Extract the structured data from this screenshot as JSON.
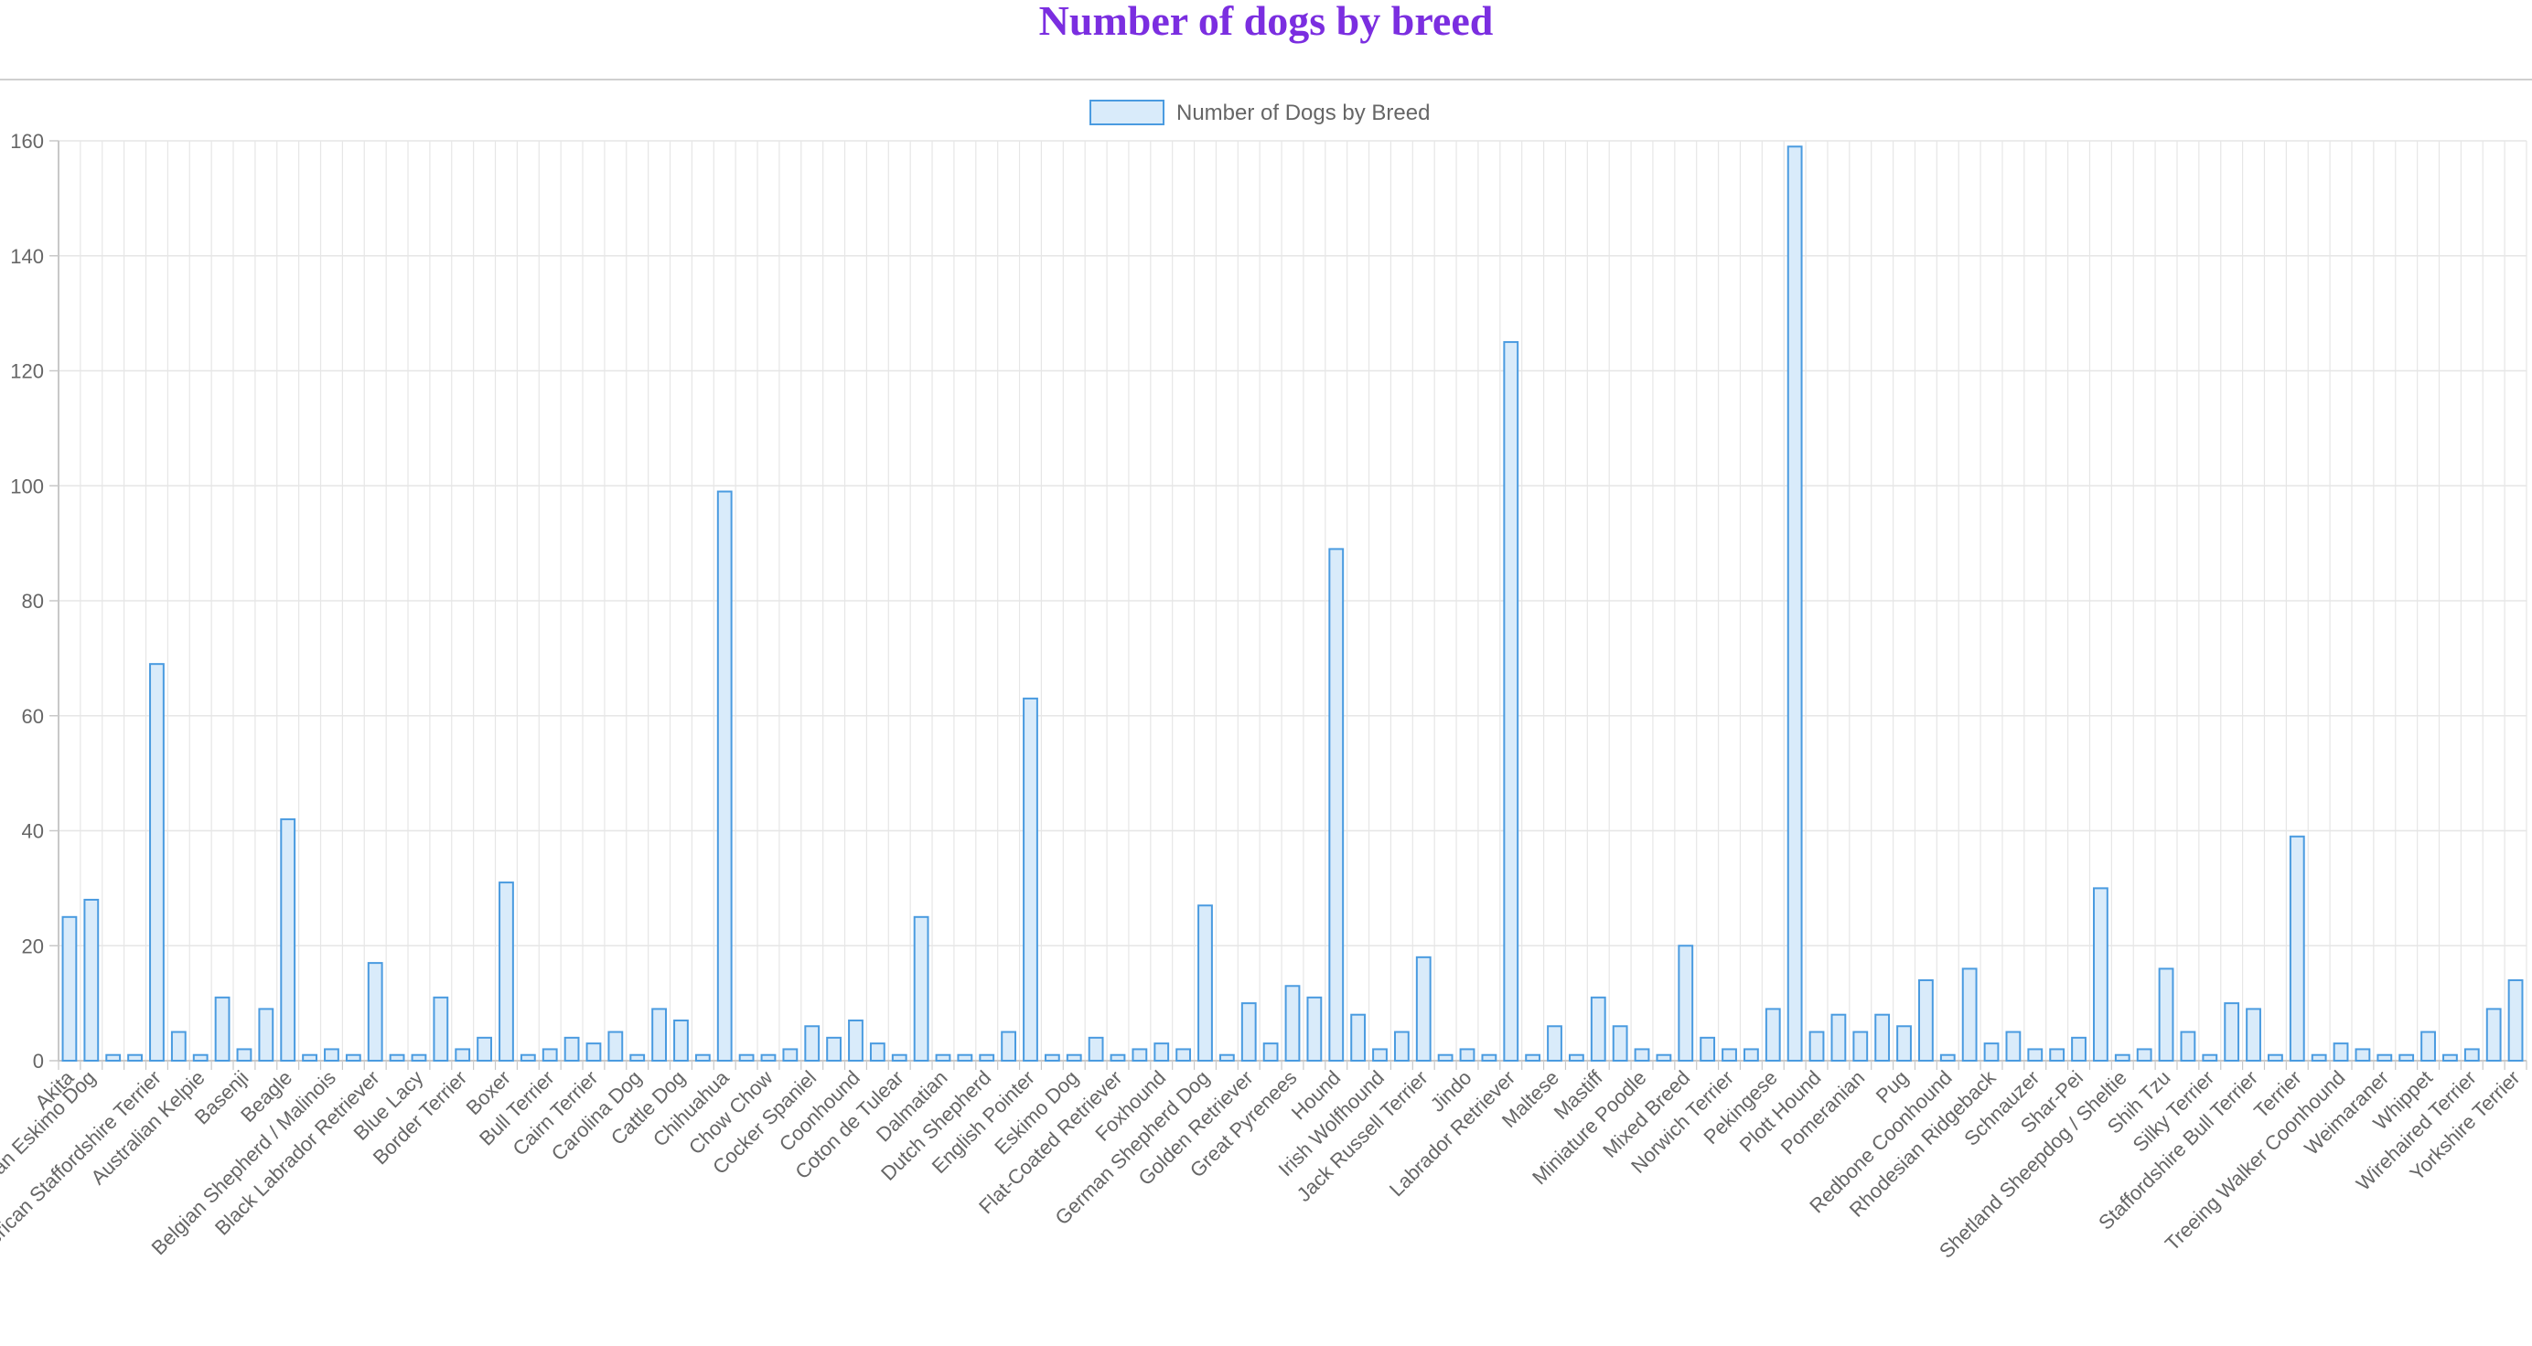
{
  "page": {
    "title": "Number of dogs by breed"
  },
  "chart_data": {
    "type": "bar",
    "title": "Number of dogs by breed",
    "xlabel": "",
    "ylabel": "",
    "ylim": [
      0,
      160
    ],
    "yticks": [
      0,
      20,
      40,
      60,
      80,
      100,
      120,
      140,
      160
    ],
    "grid": true,
    "legend_position": "top-center",
    "colors": {
      "title": "#7b2ee0",
      "bar_fill": "#d9ebfa",
      "bar_stroke": "#4a9be0",
      "grid": "#e6e6e6",
      "axis": "#c8c8c8",
      "text": "#666666"
    },
    "categories": [
      "Akita",
      "American Eskimo Dog",
      "",
      "",
      "American Staffordshire Terrier",
      "",
      "Australian Kelpie",
      "",
      "Basenji",
      "",
      "Beagle",
      "",
      "Belgian Shepherd / Malinois",
      "",
      "Black Labrador Retriever",
      "",
      "Blue Lacy",
      "",
      "Border Terrier",
      "",
      "Boxer",
      "",
      "Bull Terrier",
      "",
      "Cairn Terrier",
      "",
      "Carolina Dog",
      "",
      "Cattle Dog",
      "",
      "Chihuahua",
      "",
      "Chow Chow",
      "",
      "Cocker Spaniel",
      "",
      "Coonhound",
      "",
      "Coton de Tulear",
      "",
      "Dalmatian",
      "",
      "Dutch Shepherd",
      "",
      "English Pointer",
      "",
      "Eskimo Dog",
      "",
      "Flat-Coated Retriever",
      "",
      "Foxhound",
      "",
      "German Shepherd Dog",
      "",
      "Golden Retriever",
      "",
      "Great Pyrenees",
      "",
      "Hound",
      "",
      "Irish Wolfhound",
      "",
      "Jack Russell Terrier",
      "",
      "Jindo",
      "",
      "Labrador Retriever",
      "",
      "Maltese",
      "",
      "Mastiff",
      "",
      "Miniature Poodle",
      "",
      "Mixed Breed",
      "",
      "Norwich Terrier",
      "",
      "Pekingese",
      "",
      "Plott Hound",
      "",
      "Pomeranian",
      "",
      "Pug",
      "",
      "Redbone Coonhound",
      "",
      "Rhodesian Ridgeback",
      "",
      "Schnauzer",
      "",
      "Shar-Pei",
      "",
      "Shetland Sheepdog / Sheltie",
      "",
      "Shih Tzu",
      "",
      "Silky Terrier",
      "",
      "Staffordshire Bull Terrier",
      "",
      "Terrier",
      "",
      "Treeing Walker Coonhound",
      "",
      "Weimaraner",
      "",
      "Whippet",
      "",
      "Wirehaired Terrier",
      "",
      "Yorkshire Terrier"
    ],
    "series": [
      {
        "name": "Number of Dogs by Breed",
        "values": [
          25,
          28,
          1,
          1,
          69,
          5,
          1,
          11,
          2,
          9,
          42,
          1,
          2,
          1,
          17,
          1,
          1,
          11,
          2,
          4,
          31,
          1,
          2,
          4,
          3,
          5,
          1,
          9,
          7,
          1,
          99,
          1,
          1,
          2,
          6,
          4,
          7,
          3,
          1,
          25,
          1,
          1,
          1,
          5,
          63,
          1,
          1,
          4,
          1,
          2,
          3,
          2,
          27,
          1,
          10,
          3,
          13,
          11,
          89,
          8,
          2,
          5,
          18,
          1,
          2,
          1,
          125,
          1,
          6,
          1,
          11,
          6,
          2,
          1,
          20,
          4,
          2,
          2,
          9,
          159,
          5,
          8,
          5,
          8,
          6,
          14,
          1,
          16,
          3,
          5,
          2,
          2,
          4,
          30,
          1,
          2,
          16,
          5,
          1,
          10,
          9,
          1,
          39,
          1,
          3,
          2,
          1,
          1,
          5,
          1,
          2,
          9,
          14
        ]
      }
    ]
  }
}
